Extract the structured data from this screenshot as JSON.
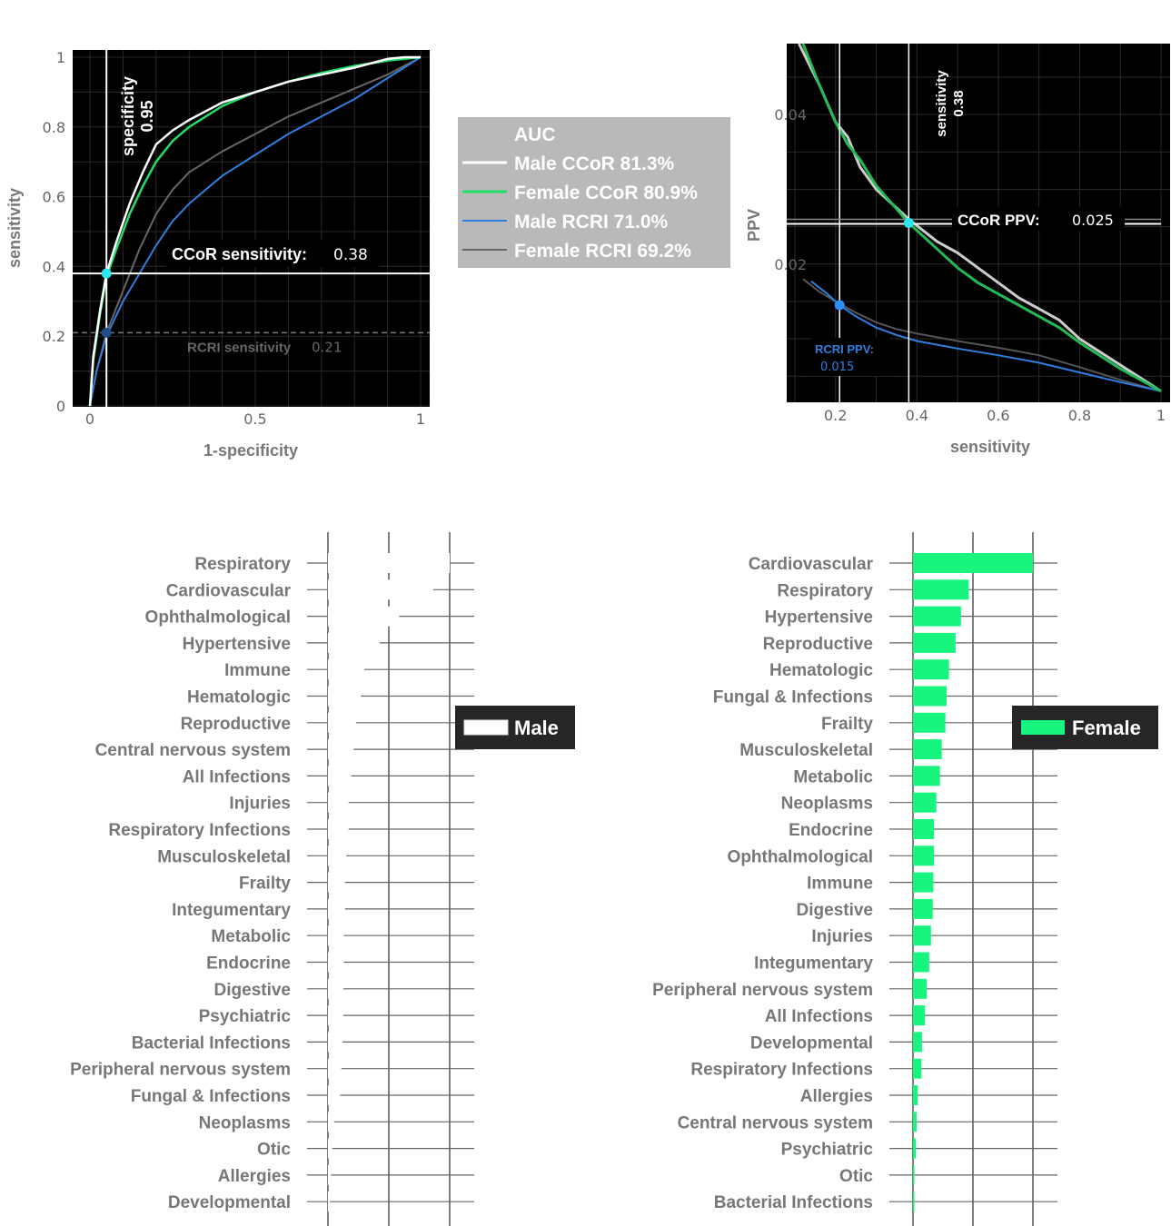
{
  "colors": {
    "male_ccor": "#ffffff",
    "female_ccor": "#22dd66",
    "male_rcri": "#2f7fe0",
    "female_rcri": "#666666",
    "female_bar": "#18f57f",
    "male_bar": "#ffffff",
    "panel_bg": "#000000",
    "label_gray": "#777777"
  },
  "chart_data": [
    {
      "type": "line",
      "xlabel": "1-specificity",
      "ylabel": "sensitivity",
      "xlim": [
        0,
        1
      ],
      "ylim": [
        0,
        1
      ],
      "xticks": [
        "0",
        "0.5",
        "1"
      ],
      "yticks": [
        "0",
        "0.2",
        "0.4",
        "0.6",
        "0.8",
        "1"
      ],
      "grid": true,
      "series": [
        {
          "name": "Male CCoR 81.3%",
          "color": "#ffffff",
          "x": [
            0,
            0.01,
            0.03,
            0.05,
            0.08,
            0.12,
            0.16,
            0.2,
            0.25,
            0.3,
            0.4,
            0.5,
            0.6,
            0.7,
            0.8,
            0.9,
            0.95,
            1
          ],
          "y": [
            0,
            0.14,
            0.27,
            0.38,
            0.47,
            0.58,
            0.67,
            0.75,
            0.79,
            0.82,
            0.87,
            0.9,
            0.93,
            0.95,
            0.97,
            0.995,
            1,
            1
          ]
        },
        {
          "name": "Female CCoR 80.9%",
          "color": "#22dd66",
          "x": [
            0,
            0.01,
            0.03,
            0.05,
            0.08,
            0.12,
            0.16,
            0.2,
            0.25,
            0.3,
            0.4,
            0.5,
            0.6,
            0.7,
            0.8,
            0.9,
            0.95,
            1
          ],
          "y": [
            0,
            0.13,
            0.26,
            0.37,
            0.45,
            0.55,
            0.63,
            0.7,
            0.76,
            0.8,
            0.86,
            0.9,
            0.93,
            0.955,
            0.975,
            0.99,
            0.995,
            1
          ]
        },
        {
          "name": "Male RCRI 71.0%",
          "color": "#2f7fe0",
          "x": [
            0,
            0.02,
            0.05,
            0.1,
            0.15,
            0.2,
            0.25,
            0.3,
            0.35,
            0.4,
            0.5,
            0.6,
            0.7,
            0.8,
            0.9,
            1
          ],
          "y": [
            0,
            0.1,
            0.2,
            0.3,
            0.38,
            0.46,
            0.53,
            0.58,
            0.62,
            0.66,
            0.72,
            0.78,
            0.83,
            0.88,
            0.94,
            1
          ]
        },
        {
          "name": "Female RCRI 69.2%",
          "color": "#666666",
          "x": [
            0,
            0.02,
            0.05,
            0.1,
            0.15,
            0.2,
            0.25,
            0.3,
            0.35,
            0.4,
            0.5,
            0.6,
            0.7,
            0.8,
            0.9,
            1
          ],
          "y": [
            0,
            0.1,
            0.21,
            0.33,
            0.45,
            0.55,
            0.62,
            0.67,
            0.7,
            0.73,
            0.78,
            0.83,
            0.87,
            0.91,
            0.95,
            1
          ]
        }
      ],
      "annotations": {
        "specificity_label": "specificity",
        "specificity_value": "0.95",
        "specificity_x": 0.05,
        "ccor_label": "CCoR sensitivity:",
        "ccor_value": "0.38",
        "ccor_y": 0.38,
        "rcri_label": "RCRI sensitivity",
        "rcri_value": "0.21",
        "rcri_y": 0.21
      }
    },
    {
      "type": "line",
      "xlabel": "sensitivity",
      "ylabel": "PPV",
      "xlim": [
        0.08,
        1
      ],
      "ylim": [
        0.0015,
        0.0495
      ],
      "xticks": [
        "0.2",
        "0.4",
        "0.6",
        "0.8",
        "1"
      ],
      "yticks": [
        "0.02",
        "0.04"
      ],
      "grid": true,
      "series": [
        {
          "name": "Male CCoR",
          "color": "#cccccc",
          "x": [
            0.11,
            0.16,
            0.2,
            0.23,
            0.26,
            0.3,
            0.34,
            0.38,
            0.45,
            0.5,
            0.55,
            0.6,
            0.65,
            0.7,
            0.75,
            0.8,
            0.9,
            1
          ],
          "y": [
            0.0495,
            0.044,
            0.039,
            0.037,
            0.033,
            0.03,
            0.028,
            0.026,
            0.023,
            0.0215,
            0.0195,
            0.0175,
            0.0155,
            0.014,
            0.0125,
            0.01,
            0.0065,
            0.003
          ]
        },
        {
          "name": "Female CCoR",
          "color": "#22bb55",
          "x": [
            0.12,
            0.16,
            0.2,
            0.23,
            0.26,
            0.3,
            0.34,
            0.38,
            0.45,
            0.5,
            0.55,
            0.6,
            0.65,
            0.7,
            0.75,
            0.8,
            0.9,
            1
          ],
          "y": [
            0.0495,
            0.044,
            0.039,
            0.036,
            0.034,
            0.0305,
            0.028,
            0.0255,
            0.022,
            0.0195,
            0.0175,
            0.016,
            0.0145,
            0.013,
            0.0115,
            0.0095,
            0.006,
            0.003
          ]
        },
        {
          "name": "Male RCRI",
          "color": "#2f7fe0",
          "x": [
            0.14,
            0.18,
            0.21,
            0.25,
            0.3,
            0.35,
            0.4,
            0.5,
            0.6,
            0.7,
            0.8,
            0.9,
            1
          ],
          "y": [
            0.0177,
            0.016,
            0.0145,
            0.013,
            0.0115,
            0.0105,
            0.0097,
            0.0087,
            0.0078,
            0.0068,
            0.0055,
            0.0042,
            0.003
          ]
        },
        {
          "name": "Female RCRI",
          "color": "#555555",
          "x": [
            0.12,
            0.16,
            0.2,
            0.25,
            0.3,
            0.35,
            0.4,
            0.5,
            0.6,
            0.7,
            0.8,
            0.9,
            1
          ],
          "y": [
            0.018,
            0.0163,
            0.015,
            0.0135,
            0.0122,
            0.0113,
            0.0107,
            0.0097,
            0.0088,
            0.0078,
            0.0062,
            0.0045,
            0.003
          ]
        }
      ],
      "annotations": {
        "sens_label": "sensitivity",
        "sens_value": "0.38",
        "sens_x": 0.38,
        "rcri_x": 0.21,
        "ccor_label": "CCoR PPV:",
        "ccor_value": "0.025",
        "ccor_y": 0.0255,
        "rcri_label": "RCRI PPV:",
        "rcri_value": "0.015",
        "rcri_y": 0.0145
      }
    },
    {
      "type": "bar",
      "orientation": "horizontal",
      "legend": "Male",
      "color": "#ffffff",
      "categories": [
        "Respiratory",
        "Cardiovascular",
        "Ophthalmological",
        "Hypertensive",
        "Immune",
        "Hematologic",
        "Reproductive",
        "Central nervous system",
        "All Infections",
        "Injuries",
        "Respiratory Infections",
        "Musculoskeletal",
        "Frailty",
        "Integumentary",
        "Metabolic",
        "Endocrine",
        "Digestive",
        "Psychiatric",
        "Bacterial Infections",
        "Peripheral nervous system",
        "Fungal & Infections",
        "Neoplasms",
        "Otic",
        "Allergies",
        "Developmental"
      ],
      "values": [
        2.0,
        1.73,
        1.17,
        0.85,
        0.6,
        0.54,
        0.46,
        0.42,
        0.38,
        0.34,
        0.34,
        0.3,
        0.28,
        0.28,
        0.26,
        0.26,
        0.25,
        0.25,
        0.24,
        0.22,
        0.2,
        0.1,
        0.07,
        0.05,
        0.03
      ]
    },
    {
      "type": "bar",
      "orientation": "horizontal",
      "legend": "Female",
      "color": "#18f57f",
      "categories": [
        "Cardiovascular",
        "Respiratory",
        "Hypertensive",
        "Reproductive",
        "Hematologic",
        "Fungal & Infections",
        "Frailty",
        "Musculoskeletal",
        "Metabolic",
        "Neoplasms",
        "Endocrine",
        "Ophthalmological",
        "Immune",
        "Digestive",
        "Injuries",
        "Integumentary",
        "Peripheral nervous system",
        "All Infections",
        "Developmental",
        "Respiratory Infections",
        "Allergies",
        "Central nervous system",
        "Psychiatric",
        "Otic",
        "Bacterial Infections"
      ],
      "values": [
        2.0,
        0.93,
        0.8,
        0.71,
        0.6,
        0.56,
        0.54,
        0.48,
        0.45,
        0.39,
        0.35,
        0.35,
        0.34,
        0.33,
        0.3,
        0.27,
        0.23,
        0.2,
        0.15,
        0.14,
        0.08,
        0.06,
        0.05,
        0.02,
        0.01
      ]
    }
  ],
  "legend_box": {
    "title": "AUC",
    "items": [
      {
        "label": "Male CCoR 81.3%",
        "color": "#ffffff"
      },
      {
        "label": "Female CCoR 80.9%",
        "color": "#22dd66"
      },
      {
        "label": "Male RCRI 71.0%",
        "color": "#2f7fe0"
      },
      {
        "label": "Female RCRI 69.2%",
        "color": "#666666"
      }
    ]
  }
}
